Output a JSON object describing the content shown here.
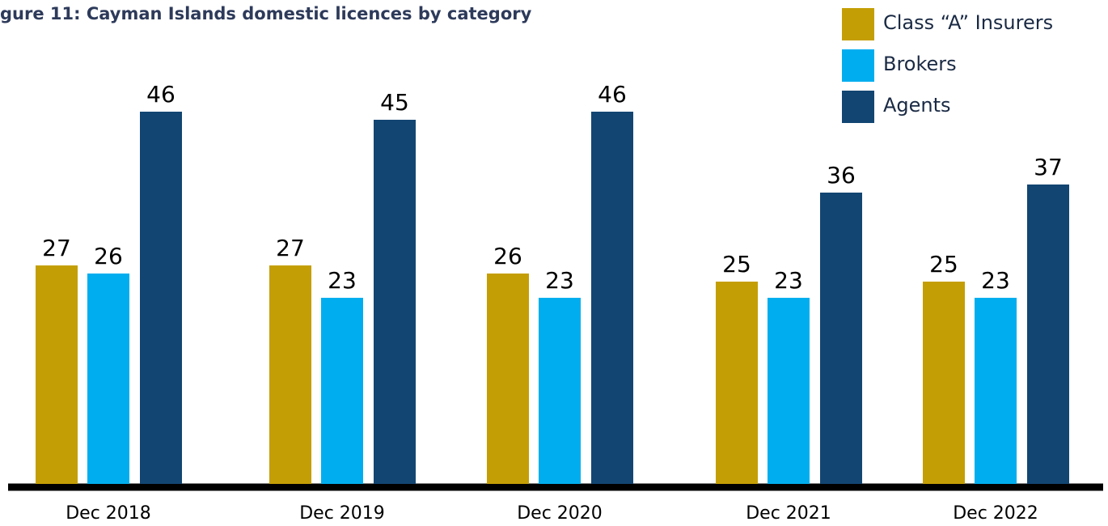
{
  "chart_data": {
    "type": "bar",
    "title": "gure 11: Cayman Islands domestic licences by category",
    "categories": [
      "Dec 2018",
      "Dec 2019",
      "Dec 2020",
      "Dec 2021",
      "Dec 2022"
    ],
    "series": [
      {
        "name": "Class “A” Insurers",
        "color": "#c49e05",
        "values": [
          27,
          27,
          26,
          25,
          25
        ]
      },
      {
        "name": "Brokers",
        "color": "#00aeef",
        "values": [
          26,
          23,
          23,
          23,
          23
        ]
      },
      {
        "name": "Agents",
        "color": "#124572",
        "values": [
          46,
          45,
          46,
          36,
          37
        ]
      }
    ],
    "legend": "top-right"
  }
}
